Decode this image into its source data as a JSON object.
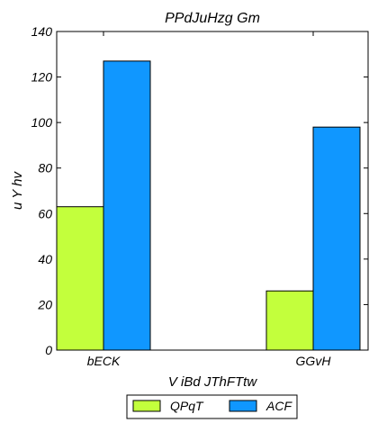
{
  "chart_data": {
    "type": "bar",
    "title": "PPdJuHzg Gm",
    "xlabel": "V iBd JThFTtw",
    "ylabel": "u Y hv",
    "categories": [
      "bECK",
      "GGvH"
    ],
    "series": [
      {
        "name": "QPqT",
        "values": [
          63,
          26
        ],
        "color": "#c3ff3c"
      },
      {
        "name": "ACF",
        "values": [
          127,
          98
        ],
        "color": "#1097ff"
      }
    ],
    "ylim": [
      0,
      140
    ],
    "yticks": [
      0,
      20,
      40,
      60,
      80,
      100,
      120,
      140
    ],
    "grid": false,
    "legend_position": "bottom-center"
  }
}
